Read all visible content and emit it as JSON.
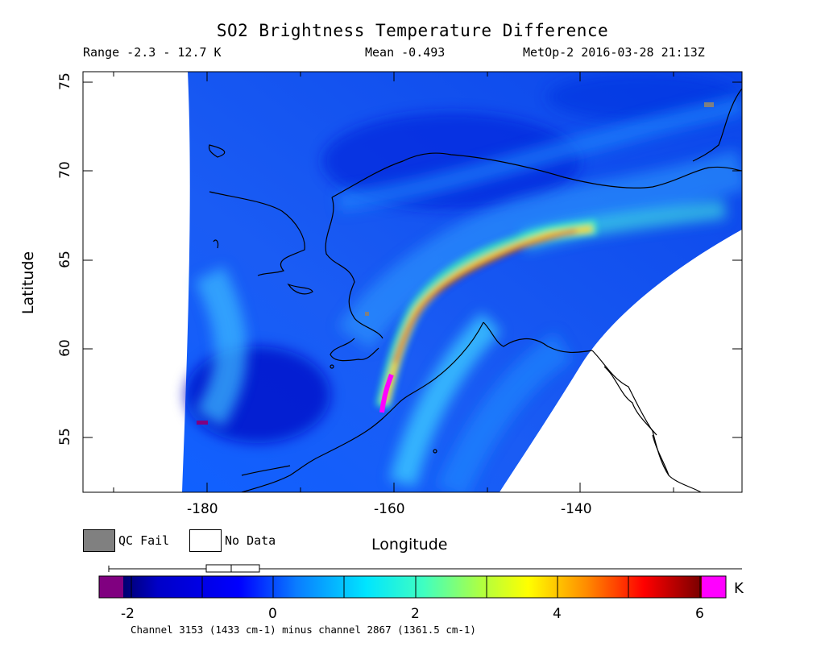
{
  "title": "SO2 Brightness Temperature Difference",
  "header": {
    "range_text": "Range -2.3 - 12.7 K",
    "mean_text": "Mean -0.493",
    "source_text": "MetOp-2 2016-03-28 21:13Z"
  },
  "map": {
    "xlabel": "Longitude",
    "ylabel": "Latitude",
    "lon_ticks": [
      "-180",
      "-160",
      "-140"
    ],
    "lat_ticks": [
      "55",
      "60",
      "65",
      "70",
      "75"
    ],
    "lon_range": [
      -195,
      -124
    ],
    "lat_range": [
      51.5,
      75.5
    ],
    "plume_feature": "SO2 plume from Aleutian volcano extending northeast over Alaska",
    "coastline": "Alaska, Chukotka, Aleutian Islands",
    "swath_edge_color": "#ffffff"
  },
  "legend": {
    "qc_fail_label": "QC Fail",
    "qc_fail_color": "#808080",
    "no_data_label": "No Data",
    "no_data_color": "#ffffff"
  },
  "colorbar": {
    "unit": "K",
    "ticks": [
      "-2",
      "0",
      "2",
      "4",
      "6"
    ],
    "range": [
      -2.4,
      6.4
    ],
    "under_color": "#800080",
    "over_color": "#ff00ff",
    "caption": "Channel 3153 (1433 cm-1) minus channel 2867 (1361.5 cm-1)"
  }
}
